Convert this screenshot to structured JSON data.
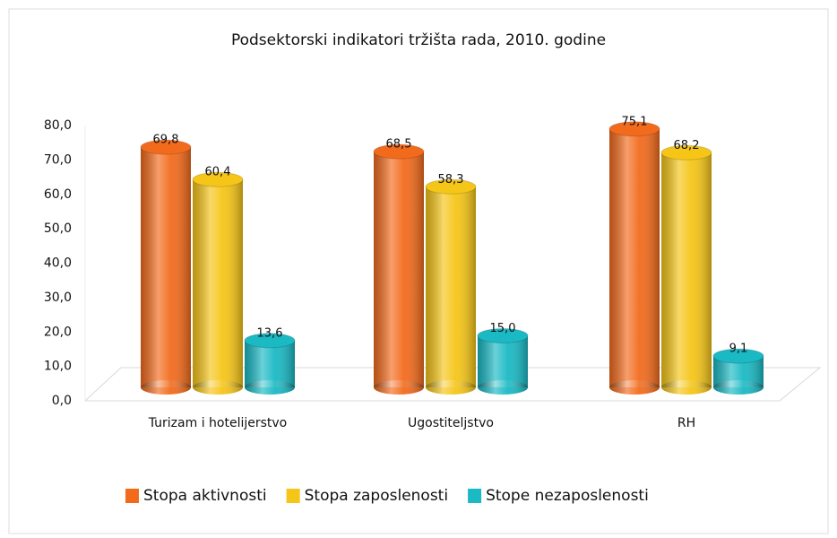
{
  "chart_data": {
    "type": "bar",
    "title": "Podsektorski indikatori tržišta rada, 2010. godine",
    "categories": [
      "Turizam i hotelijerstvo",
      "Ugostiteljstvo",
      "RH"
    ],
    "series": [
      {
        "name": "Stopa aktivnosti",
        "color": "#f26b1d",
        "values": [
          69.8,
          68.5,
          75.1
        ],
        "value_labels": [
          "69,8",
          "68,5",
          "75,1"
        ]
      },
      {
        "name": "Stopa zaposlenosti",
        "color": "#f5c518",
        "values": [
          60.4,
          58.3,
          68.2
        ],
        "value_labels": [
          "60,4",
          "58,3",
          "68,2"
        ]
      },
      {
        "name": "Stope nezaposlenosti",
        "color": "#1ab9c4",
        "values": [
          13.6,
          15.0,
          9.1
        ],
        "value_labels": [
          "13,6",
          "15,0",
          "9,1"
        ]
      }
    ],
    "ylim": [
      0,
      80
    ],
    "yticks": [
      {
        "value": 0,
        "label": "0,0"
      },
      {
        "value": 10,
        "label": "10,0"
      },
      {
        "value": 20,
        "label": "20,0"
      },
      {
        "value": 30,
        "label": "30,0"
      },
      {
        "value": 40,
        "label": "40,0"
      },
      {
        "value": 50,
        "label": "50,0"
      },
      {
        "value": 60,
        "label": "60,0"
      },
      {
        "value": 70,
        "label": "70,0"
      },
      {
        "value": 80,
        "label": "80,0"
      }
    ],
    "legend": "bottom"
  }
}
